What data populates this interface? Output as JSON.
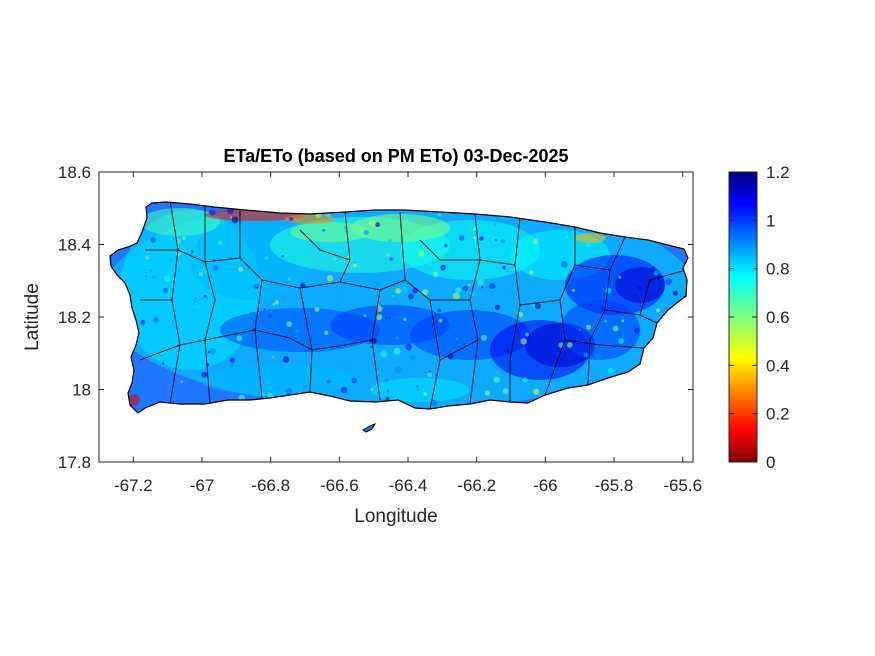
{
  "chart_data": {
    "type": "heatmap",
    "title": "ETa/ETo (based on PM ETo) 03-Dec-2025",
    "xlabel": "Longitude",
    "ylabel": "Latitude",
    "xlim": [
      -67.3,
      -65.57
    ],
    "ylim": [
      17.8,
      18.6
    ],
    "x_ticks": [
      -67.2,
      -67,
      -66.8,
      -66.6,
      -66.4,
      -66.2,
      -66,
      -65.8,
      -65.6
    ],
    "x_tick_labels": [
      "-67.2",
      "-67",
      "-66.8",
      "-66.6",
      "-66.4",
      "-66.2",
      "-66",
      "-65.8",
      "-65.6"
    ],
    "y_ticks": [
      17.8,
      18,
      18.2,
      18.4,
      18.6
    ],
    "y_tick_labels": [
      "17.8",
      "18",
      "18.2",
      "18.4",
      "18.6"
    ],
    "colorbar": {
      "colormap": "jet",
      "clim": [
        0,
        1.2
      ],
      "ticks": [
        0,
        0.2,
        0.4,
        0.6,
        0.8,
        1,
        1.2
      ],
      "tick_labels": [
        "0",
        "0.2",
        "0.4",
        "0.6",
        "0.8",
        "1",
        "1.2"
      ]
    },
    "grid": false,
    "regions": [
      {
        "region": "north coast (-67.0 to -66.6)",
        "value": 0.15
      },
      {
        "region": "north coast (-66.6 to -66.3)",
        "value": 0.55
      },
      {
        "region": "north central interior",
        "value": 0.8
      },
      {
        "region": "central cordillera (lat 18.15-18.25)",
        "value": 1.0
      },
      {
        "region": "east (-66.1 to -65.8)",
        "value": 1.1
      },
      {
        "region": "southwest corner (-67.2, 17.97)",
        "value": 0.1
      },
      {
        "region": "south coast",
        "value": 0.85
      },
      {
        "region": "west",
        "value": 0.85
      }
    ]
  },
  "colors": {
    "axes_edge": "#262626",
    "background": "#ffffff",
    "municipality_borders": "#000000"
  }
}
